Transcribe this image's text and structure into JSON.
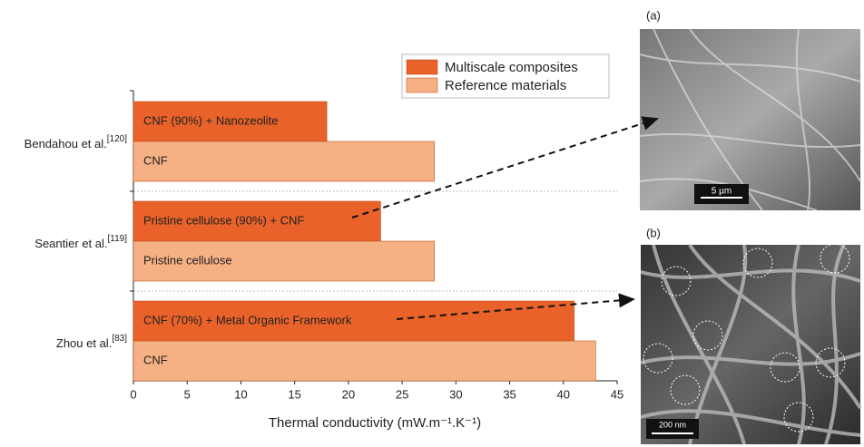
{
  "chart_data": {
    "type": "bar",
    "orientation": "horizontal",
    "categories": [
      "Bendahou et al.",
      "Seantier et al.",
      "Zhou et al."
    ],
    "category_refs": [
      "[120]",
      "[119]",
      "[83]"
    ],
    "series": [
      {
        "name": "Multiscale composites",
        "color": "#e8622a",
        "values": [
          18,
          23,
          41
        ],
        "labels": [
          "CNF (90%) + Nanozeolite",
          "Pristine cellulose (90%) + CNF",
          "CNF (70%) + Metal Organic Framework"
        ]
      },
      {
        "name": "Reference materials",
        "color": "#f5b184",
        "values": [
          28,
          28,
          43
        ],
        "labels": [
          "CNF",
          "Pristine cellulose",
          "CNF"
        ]
      }
    ],
    "xlabel": "Thermal conductivity (mW.m⁻¹.K⁻¹)",
    "xlim": [
      0,
      45
    ],
    "xticks": [
      0,
      5,
      10,
      15,
      20,
      25,
      30,
      35,
      40,
      45
    ],
    "legend": "top-right"
  },
  "images": [
    {
      "label": "(a)",
      "scale_bar": "5 µm"
    },
    {
      "label": "(b)",
      "scale_bar": "200 nm"
    }
  ]
}
